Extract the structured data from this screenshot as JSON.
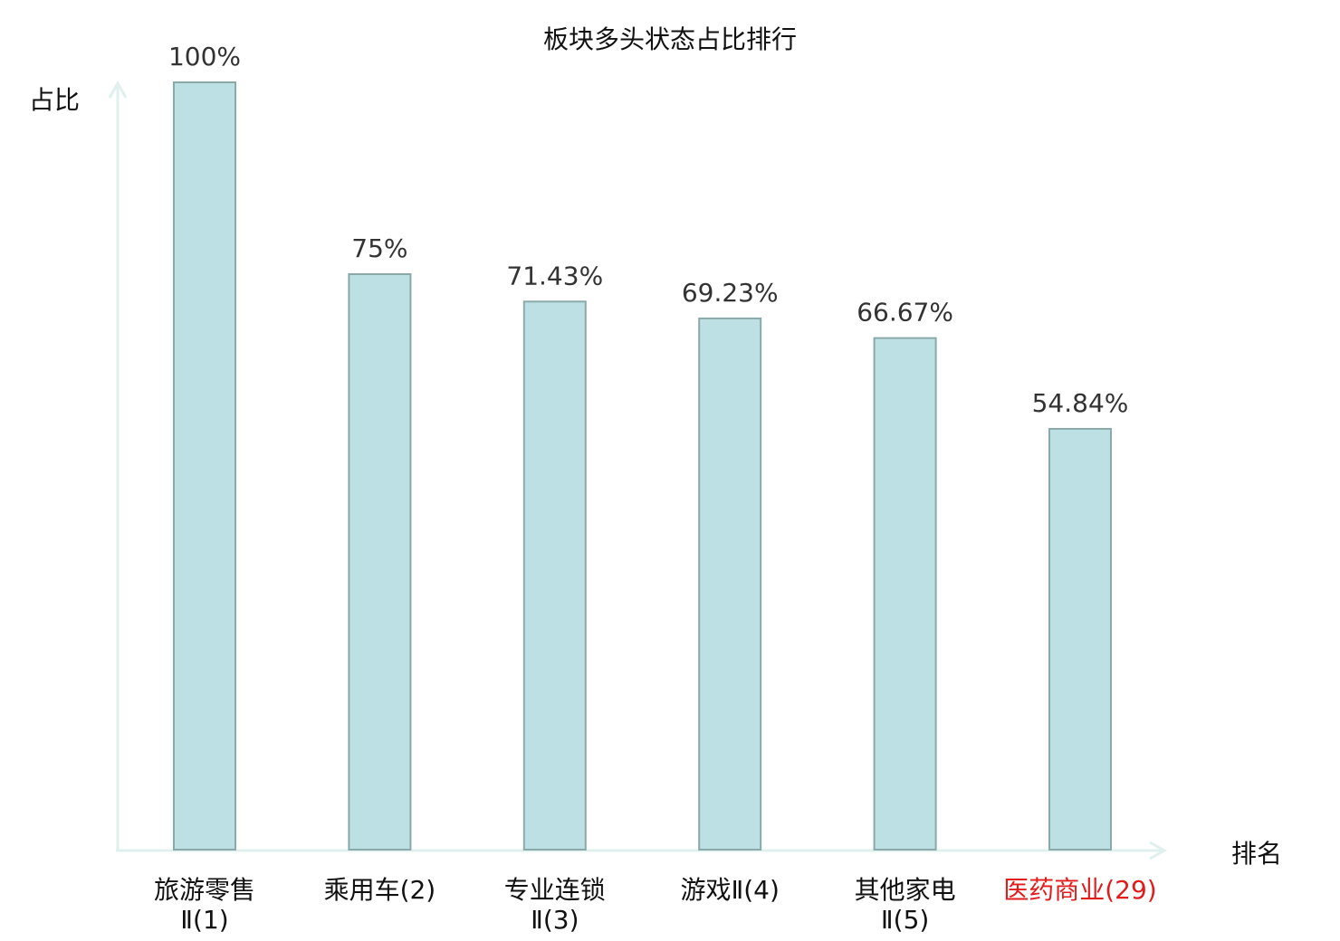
{
  "chart_data": {
    "type": "bar",
    "title": "板块多头状态占比排行",
    "ylabel": "占比",
    "xlabel": "排名",
    "ylim": [
      0,
      100
    ],
    "unit": "%",
    "categories": [
      {
        "lines": [
          "旅游零售",
          "Ⅱ(1)"
        ]
      },
      {
        "lines": [
          "乘用车(2)"
        ]
      },
      {
        "lines": [
          "专业连锁",
          "Ⅱ(3)"
        ]
      },
      {
        "lines": [
          "游戏Ⅱ(4)"
        ]
      },
      {
        "lines": [
          "其他家电",
          "Ⅱ(5)"
        ]
      },
      {
        "lines": [
          "医药商业(29)"
        ],
        "highlight": true
      }
    ],
    "values": [
      100,
      75,
      71.43,
      69.23,
      66.67,
      54.84
    ],
    "value_labels": [
      "100%",
      "75%",
      "71.43%",
      "69.23%",
      "66.67%",
      "54.84%"
    ],
    "grid": false,
    "legend": "none"
  },
  "colors": {
    "bar_fill": "#bce0e3",
    "bar_stroke": "#8aaaa9",
    "axis": "#dff0ee",
    "text": "#111111",
    "value_text": "#333333",
    "highlight_text": "#e21b1b"
  }
}
